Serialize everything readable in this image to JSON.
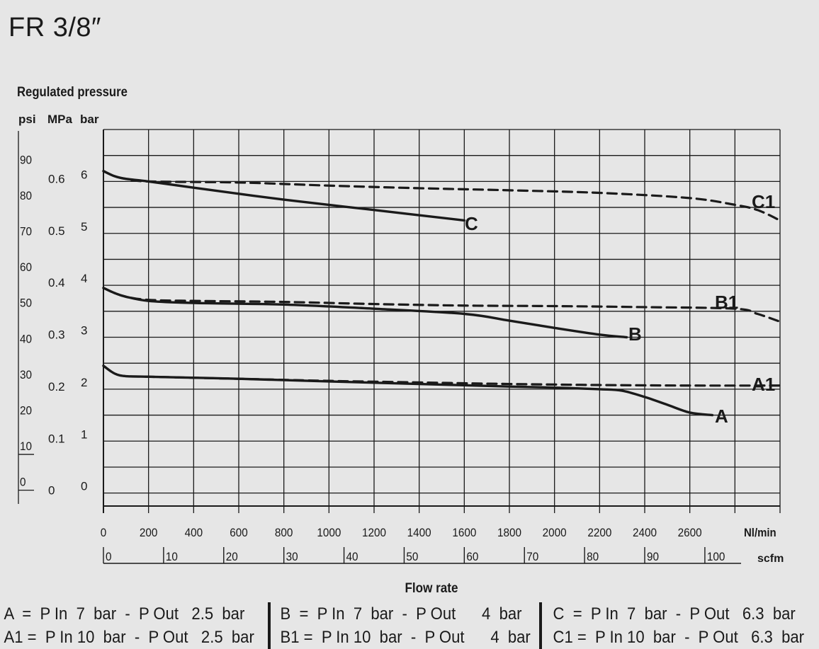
{
  "page": {
    "title": "FR 3/8″"
  },
  "chart_data": {
    "type": "line",
    "title": "FR 3/8″",
    "ylabel": "Regulated pressure",
    "xlabel": "Flow rate",
    "y_units": [
      "psi",
      "MPa",
      "bar"
    ],
    "x_units": [
      "Nl/min",
      "scfm"
    ],
    "xlim": [
      0,
      3000
    ],
    "ylim_bar": [
      -0.25,
      7
    ],
    "grid": true,
    "x_ticks_nlmin": [
      0,
      200,
      400,
      600,
      800,
      1000,
      1200,
      1400,
      1600,
      1800,
      2000,
      2200,
      2400,
      2600
    ],
    "x_ticks_scfm": [
      {
        "label": "0",
        "v": 0
      },
      {
        "label": "10",
        "v": 10
      },
      {
        "label": "20",
        "v": 20
      },
      {
        "label": "30",
        "v": 30
      },
      {
        "label": "40",
        "v": 40
      },
      {
        "label": "50",
        "v": 50
      },
      {
        "label": "60",
        "v": 60
      },
      {
        "label": "70",
        "v": 70
      },
      {
        "label": "80",
        "v": 80
      },
      {
        "label": "90",
        "v": 90
      },
      {
        "label": "100",
        "v": 100
      }
    ],
    "y_ticks_bar": [
      "0",
      "1",
      "2",
      "3",
      "4",
      "5",
      "6"
    ],
    "y_ticks_mpa": [
      {
        "label": "0",
        "bar": 0
      },
      {
        "label": "0.1",
        "bar": 1
      },
      {
        "label": "0.2",
        "bar": 2
      },
      {
        "label": "0.3",
        "bar": 3
      },
      {
        "label": "0.4",
        "bar": 4
      },
      {
        "label": "0.5",
        "bar": 5
      },
      {
        "label": "0.6",
        "bar": 6
      }
    ],
    "y_ticks_psi": [
      {
        "label": "0",
        "psi": 0
      },
      {
        "label": "10",
        "psi": 10
      },
      {
        "label": "20",
        "psi": 20
      },
      {
        "label": "30",
        "psi": 30
      },
      {
        "label": "40",
        "psi": 40
      },
      {
        "label": "50",
        "psi": 50
      },
      {
        "label": "60",
        "psi": 60
      },
      {
        "label": "70",
        "psi": 70
      },
      {
        "label": "80",
        "psi": 80
      },
      {
        "label": "90",
        "psi": 90
      }
    ],
    "series": [
      {
        "name": "A",
        "dash": false,
        "x": [
          0,
          50,
          100,
          200,
          600,
          1000,
          1400,
          1800,
          2000,
          2200,
          2300,
          2400,
          2500,
          2600,
          2700
        ],
        "y": [
          2.45,
          2.3,
          2.25,
          2.24,
          2.2,
          2.15,
          2.1,
          2.05,
          2.03,
          2.0,
          1.97,
          1.85,
          1.7,
          1.55,
          1.5
        ]
      },
      {
        "name": "A1",
        "dash": true,
        "x": [
          0,
          50,
          100,
          200,
          600,
          1000,
          1400,
          1800,
          2200,
          2600,
          3000
        ],
        "y": [
          2.45,
          2.3,
          2.25,
          2.24,
          2.2,
          2.16,
          2.13,
          2.1,
          2.08,
          2.07,
          2.07
        ]
      },
      {
        "name": "B",
        "dash": false,
        "x": [
          0,
          50,
          100,
          200,
          400,
          800,
          1200,
          1600,
          1800,
          2000,
          2200,
          2320
        ],
        "y": [
          3.95,
          3.85,
          3.78,
          3.7,
          3.66,
          3.63,
          3.55,
          3.45,
          3.32,
          3.18,
          3.05,
          3.0
        ]
      },
      {
        "name": "B1",
        "dash": true,
        "x": [
          0,
          50,
          100,
          200,
          400,
          800,
          1200,
          1600,
          2000,
          2400,
          2800,
          2900,
          3000
        ],
        "y": [
          3.95,
          3.85,
          3.78,
          3.72,
          3.7,
          3.68,
          3.64,
          3.61,
          3.6,
          3.58,
          3.55,
          3.45,
          3.3
        ]
      },
      {
        "name": "C",
        "dash": false,
        "x": [
          0,
          50,
          100,
          200,
          400,
          800,
          1200,
          1600
        ],
        "y": [
          6.2,
          6.1,
          6.05,
          6.0,
          5.88,
          5.65,
          5.45,
          5.25
        ]
      },
      {
        "name": "C1",
        "dash": true,
        "x": [
          0,
          50,
          100,
          200,
          600,
          1000,
          1400,
          1800,
          2200,
          2600,
          2800,
          2900,
          3000
        ],
        "y": [
          6.2,
          6.1,
          6.05,
          6.0,
          5.98,
          5.92,
          5.87,
          5.83,
          5.78,
          5.68,
          5.55,
          5.45,
          5.25
        ]
      }
    ],
    "legend": [
      [
        "A  =  P In  7  bar  -  P Out   2.5  bar",
        "A1 =  P In 10  bar  -  P Out   2.5  bar"
      ],
      [
        "B  =  P In  7  bar  -  P Out      4  bar",
        "B1 =  P In 10  bar  -  P Out      4  bar"
      ],
      [
        "C  =  P In  7  bar  -  P Out   6.3  bar",
        "C1 =  P In 10  bar  -  P Out   6.3  bar"
      ]
    ]
  }
}
